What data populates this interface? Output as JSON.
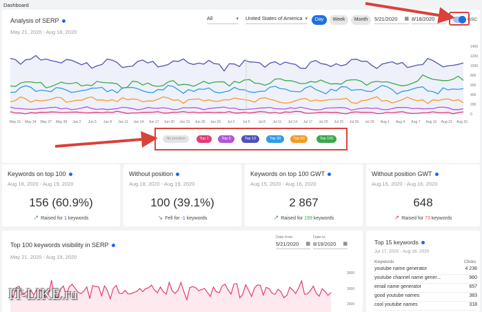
{
  "page_title": "Dashboard",
  "serp": {
    "title": "Analysis of SERP",
    "date_range": "May 21, 2020 - Aug 18, 2020",
    "filter_all": "All",
    "filter_country": "United States of America",
    "period_buttons": [
      "Day",
      "Week",
      "Month"
    ],
    "date_from": "5/21/2020",
    "date_to": "8/18/2020",
    "gsc_label": "GSC",
    "gsc_enabled": true,
    "y_ticks": [
      "1400",
      "1200",
      "1000",
      "800",
      "600",
      "400",
      "200",
      "0"
    ],
    "x_ticks": [
      "May 21",
      "May 24",
      "May 27",
      "May 30",
      "Jun 2",
      "Jun 5",
      "Jun 8",
      "Jun 11",
      "Jun 14",
      "Jun 17",
      "Jun 20",
      "Jun 23",
      "Jun 26",
      "Jun 29",
      "Jul 2",
      "Jul 5",
      "Jul 8",
      "Jul 11",
      "Jul 14",
      "Jul 17",
      "Jul 20",
      "Jul 23",
      "Jul 26",
      "Jul 29",
      "Aug 1",
      "Aug 4",
      "Aug 7",
      "Aug 10",
      "Aug 13",
      "Aug 16"
    ],
    "legend_tags": [
      {
        "label": "No position",
        "color": "#e4e4e4",
        "text_color": "#9a9a9a"
      },
      {
        "label": "Top 1",
        "color": "#e33b75",
        "text_color": "#ffffff"
      },
      {
        "label": "Top 3",
        "color": "#b356d6",
        "text_color": "#ffffff"
      },
      {
        "label": "Top 10",
        "color": "#4f52b8",
        "text_color": "#ffffff"
      },
      {
        "label": "Top 30",
        "color": "#2e9ce6",
        "text_color": "#ffffff"
      },
      {
        "label": "Top 50",
        "color": "#f59a23",
        "text_color": "#ffffff"
      },
      {
        "label": "Top 100",
        "color": "#3aa84a",
        "text_color": "#ffffff"
      }
    ]
  },
  "stats": [
    {
      "title": "Keywords on top 100",
      "date": "Aug 18, 2020 - Aug 19, 2020",
      "value": "156 (60.9%)",
      "note_prefix": "Raised for ",
      "note_num": "1",
      "note_suffix": " keywords",
      "trend": "up",
      "num_color": "#2563eb"
    },
    {
      "title": "Without position",
      "date": "Aug 18, 2020 - Aug 19, 2020",
      "value": "100 (39.1%)",
      "note_prefix": "Fell for ",
      "note_num": "-1",
      "note_suffix": " keywords",
      "trend": "down",
      "num_color": "#2563eb"
    },
    {
      "title": "Keywords on top 100 GWT",
      "date": "Aug 15, 2020 - Aug 16, 2020",
      "value": "2 867",
      "note_prefix": "Raised for ",
      "note_num": "199",
      "note_suffix": " keywords",
      "trend": "up",
      "num_color": "#3aa84a"
    },
    {
      "title": "Without position GWT",
      "date": "Aug 15, 2020 - Aug 16, 2020",
      "value": "648",
      "note_prefix": "Raised for ",
      "note_num": "73",
      "note_suffix": " keywords",
      "trend": "up-red",
      "num_color": "#e53935"
    }
  ],
  "visibility": {
    "title": "Top 100 keywords visibility in SERP",
    "date_range": "May 21, 2020 - Aug 19, 2020",
    "date_from_label": "Date from",
    "date_from": "5/21/2020",
    "date_to_label": "Date to",
    "date_to": "8/19/2020",
    "y_ticks": [
      "3500",
      "3000",
      "2500"
    ]
  },
  "top15": {
    "title": "Top 15 keywords",
    "date_range": "Jul 17, 2020 - Aug 16, 2020",
    "col_keywords": "Keywords",
    "col_clicks": "Clicks",
    "rows": [
      {
        "keyword": "youtube name generator",
        "clicks": "4 236"
      },
      {
        "keyword": "youtube channel name gener...",
        "clicks": "960"
      },
      {
        "keyword": "email name generator",
        "clicks": "657"
      },
      {
        "keyword": "good youtube names",
        "clicks": "383"
      },
      {
        "keyword": "cool youtube names",
        "clicks": "318"
      }
    ]
  },
  "watermark": "IT-LIKE.ru"
}
